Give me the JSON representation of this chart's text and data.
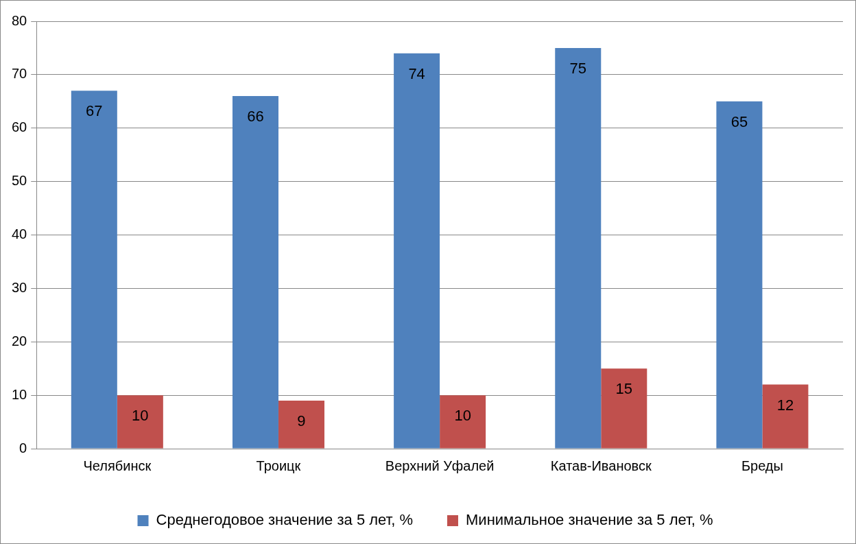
{
  "chart_data": {
    "type": "bar",
    "categories": [
      "Челябинск",
      "Троицк",
      "Верхний Уфалей",
      "Катав-Ивановск",
      "Бреды"
    ],
    "series": [
      {
        "name": "Среднегодовое значение за 5 лет, %",
        "color": "#4f81bd",
        "values": [
          67,
          66,
          74,
          75,
          65
        ]
      },
      {
        "name": "Минимальное значение за 5 лет, %",
        "color": "#c0504d",
        "values": [
          10,
          9,
          10,
          15,
          12
        ]
      }
    ],
    "ylim": [
      0,
      80
    ],
    "yticks": [
      0,
      10,
      20,
      30,
      40,
      50,
      60,
      70,
      80
    ],
    "grid": "y",
    "legend": "bottom",
    "data_labels": true
  }
}
